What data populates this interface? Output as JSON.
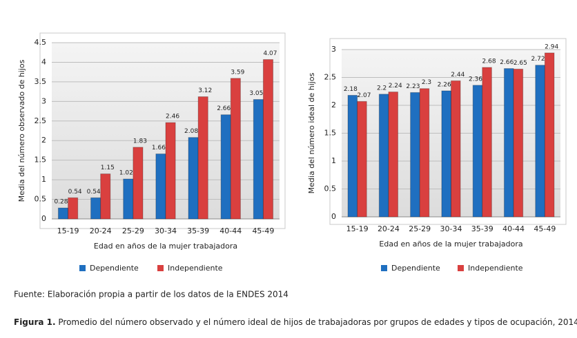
{
  "chart_data": [
    {
      "type": "bar",
      "ylabel": "Media del número observado de hijos",
      "xlabel": "Edad en años de la mujer trabajadora",
      "categories": [
        "15-19",
        "20-24",
        "25-29",
        "30-34",
        "35-39",
        "40-44",
        "45-49"
      ],
      "series": [
        {
          "name": "Dependiente",
          "color": "#1f6fc0",
          "values": [
            0.28,
            0.54,
            1.02,
            1.66,
            2.08,
            2.66,
            3.05
          ]
        },
        {
          "name": "Independiente",
          "color": "#d9403f",
          "values": [
            0.54,
            1.15,
            1.83,
            2.46,
            3.12,
            3.59,
            4.07
          ]
        }
      ],
      "ylim": [
        0,
        4.5
      ],
      "yticks": [
        0,
        0.5,
        1,
        1.5,
        2,
        2.5,
        3,
        3.5,
        4,
        4.5
      ],
      "grid": true,
      "legend": "bottom"
    },
    {
      "type": "bar",
      "ylabel": "Media del número ideal de hijos",
      "xlabel": "Edad en años de la mujer trabajadora",
      "categories": [
        "15-19",
        "20-24",
        "25-29",
        "30-34",
        "35-39",
        "40-44",
        "45-49"
      ],
      "series": [
        {
          "name": "Dependiente",
          "color": "#1f6fc0",
          "values": [
            2.18,
            2.2,
            2.23,
            2.26,
            2.36,
            2.66,
            2.72
          ]
        },
        {
          "name": "Independiente",
          "color": "#d9403f",
          "values": [
            2.07,
            2.24,
            2.3,
            2.44,
            2.68,
            2.65,
            2.94
          ]
        }
      ],
      "ylim": [
        0,
        3
      ],
      "yticks": [
        0,
        0.5,
        1,
        1.5,
        2,
        2.5,
        3
      ],
      "grid": true,
      "legend": "bottom"
    }
  ],
  "source": "Fuente: Elaboración propia a partir de los datos de la ENDES 2014",
  "figure": {
    "label": "Figura 1.",
    "caption": "Promedio del número observado y el número ideal de hijos de trabajadoras por grupos de edades y tipos de ocupación, 2014"
  }
}
